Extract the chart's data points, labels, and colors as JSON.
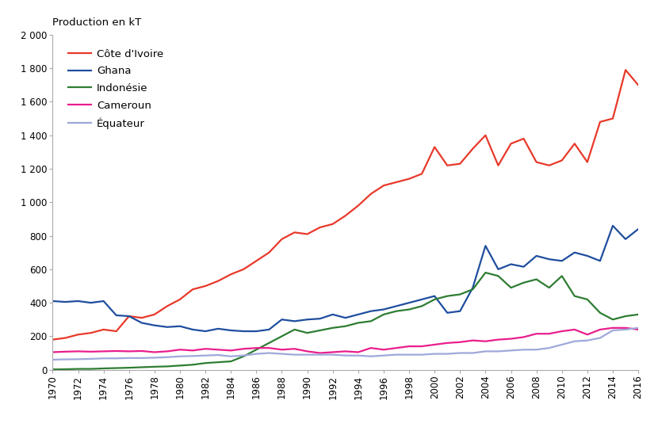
{
  "ylabel": "Production en kT",
  "ylim": [
    0,
    2000
  ],
  "yticks": [
    0,
    200,
    400,
    600,
    800,
    1000,
    1200,
    1400,
    1600,
    1800,
    2000
  ],
  "ytick_labels": [
    "0",
    "200",
    "400",
    "600",
    "800",
    "1 000",
    "1 200",
    "1 400",
    "1 600",
    "1 800",
    "2 000"
  ],
  "xlim": [
    1970,
    2016
  ],
  "xticks": [
    1970,
    1972,
    1974,
    1976,
    1978,
    1980,
    1982,
    1984,
    1986,
    1988,
    1990,
    1992,
    1994,
    1996,
    1998,
    2000,
    2002,
    2004,
    2006,
    2008,
    2010,
    2012,
    2014,
    2016
  ],
  "years": [
    1970,
    1971,
    1972,
    1973,
    1974,
    1975,
    1976,
    1977,
    1978,
    1979,
    1980,
    1981,
    1982,
    1983,
    1984,
    1985,
    1986,
    1987,
    1988,
    1989,
    1990,
    1991,
    1992,
    1993,
    1994,
    1995,
    1996,
    1997,
    1998,
    1999,
    2000,
    2001,
    2002,
    2003,
    2004,
    2005,
    2006,
    2007,
    2008,
    2009,
    2010,
    2011,
    2012,
    2013,
    2014,
    2015,
    2016
  ],
  "cote_divoire": [
    180,
    190,
    210,
    220,
    240,
    230,
    320,
    310,
    330,
    380,
    420,
    480,
    500,
    530,
    570,
    600,
    650,
    700,
    780,
    820,
    810,
    850,
    870,
    920,
    980,
    1050,
    1100,
    1120,
    1140,
    1170,
    1330,
    1220,
    1230,
    1320,
    1400,
    1220,
    1350,
    1380,
    1240,
    1220,
    1250,
    1350,
    1240,
    1480,
    1500,
    1790,
    1700
  ],
  "ghana": [
    410,
    405,
    410,
    400,
    410,
    325,
    320,
    280,
    265,
    255,
    260,
    240,
    230,
    245,
    235,
    230,
    230,
    240,
    300,
    290,
    300,
    305,
    330,
    310,
    330,
    350,
    360,
    380,
    400,
    420,
    440,
    340,
    350,
    490,
    740,
    600,
    630,
    615,
    680,
    660,
    650,
    700,
    680,
    650,
    860,
    780,
    840
  ],
  "indonesie": [
    2,
    3,
    5,
    5,
    8,
    10,
    12,
    15,
    18,
    20,
    25,
    30,
    40,
    45,
    50,
    80,
    120,
    160,
    200,
    240,
    220,
    235,
    250,
    260,
    280,
    290,
    330,
    350,
    360,
    380,
    420,
    440,
    450,
    480,
    580,
    560,
    490,
    520,
    540,
    490,
    560,
    440,
    420,
    340,
    300,
    320,
    330
  ],
  "cameroun": [
    105,
    108,
    110,
    108,
    110,
    112,
    110,
    112,
    105,
    110,
    120,
    115,
    125,
    120,
    115,
    125,
    130,
    130,
    120,
    125,
    110,
    100,
    105,
    110,
    105,
    130,
    120,
    130,
    140,
    140,
    150,
    160,
    165,
    175,
    170,
    180,
    185,
    195,
    215,
    215,
    230,
    240,
    210,
    240,
    250,
    250,
    240
  ],
  "equateur": [
    60,
    62,
    63,
    65,
    68,
    68,
    70,
    70,
    72,
    75,
    80,
    82,
    85,
    88,
    80,
    85,
    95,
    100,
    95,
    90,
    90,
    90,
    90,
    85,
    85,
    80,
    85,
    90,
    90,
    90,
    95,
    95,
    100,
    100,
    110,
    110,
    115,
    120,
    120,
    130,
    150,
    170,
    175,
    190,
    235,
    240,
    250
  ],
  "series": [
    {
      "label": "Côte d'Ivoire",
      "color": "#e8392a",
      "key": "cote_divoire"
    },
    {
      "label": "Ghana",
      "color": "#1f4e9e",
      "key": "ghana"
    },
    {
      "label": "Indonésie",
      "color": "#2e7d32",
      "key": "indonesie"
    },
    {
      "label": "Cameroun",
      "color": "#e91e8c",
      "key": "cameroun"
    },
    {
      "label": "Équateur",
      "color": "#9fa8da",
      "key": "equateur"
    }
  ],
  "background_color": "#ffffff",
  "line_width": 1.6
}
